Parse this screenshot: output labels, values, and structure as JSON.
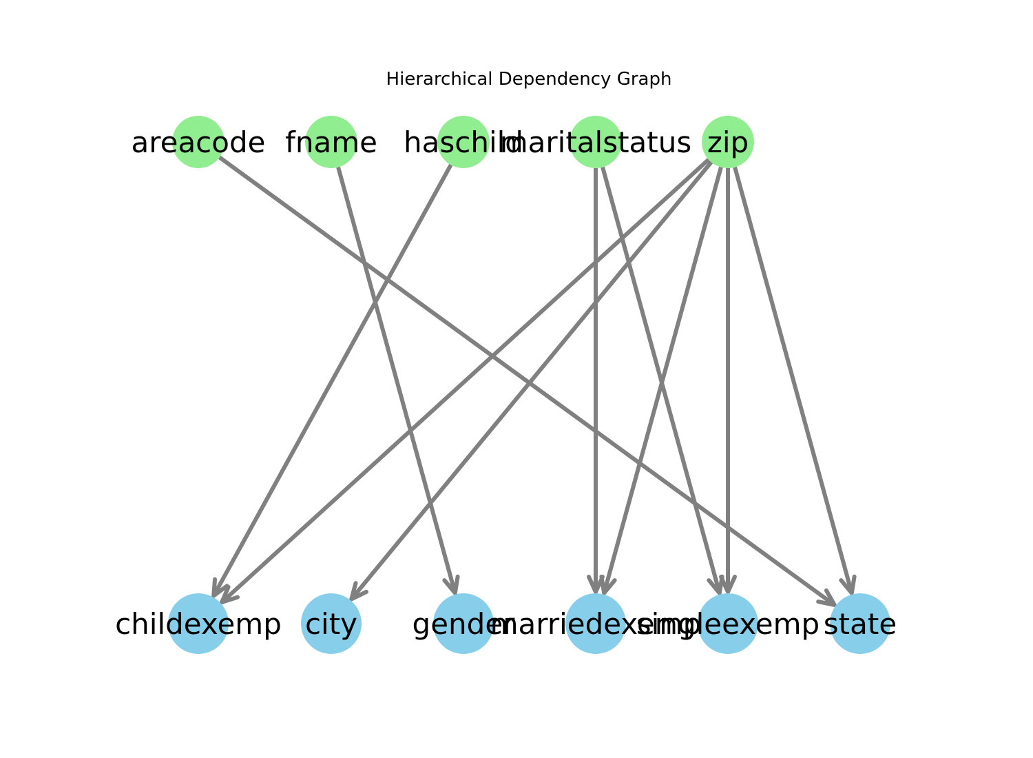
{
  "title": "Hierarchical Dependency Graph",
  "colors": {
    "source_node": "#90ee90",
    "target_node": "#87ceeb",
    "edge": "#808080",
    "label": "#000000",
    "background": "#ffffff"
  },
  "nodes": {
    "sources": [
      {
        "id": "areacode",
        "label": "areacode"
      },
      {
        "id": "fname",
        "label": "fname"
      },
      {
        "id": "haschild",
        "label": "haschild"
      },
      {
        "id": "maritalstatus",
        "label": "maritalstatus"
      },
      {
        "id": "zip",
        "label": "zip"
      }
    ],
    "targets": [
      {
        "id": "childexemp",
        "label": "childexemp"
      },
      {
        "id": "city",
        "label": "city"
      },
      {
        "id": "gender",
        "label": "gender"
      },
      {
        "id": "marriedexemp",
        "label": "marriedexemp"
      },
      {
        "id": "singleexemp",
        "label": "singleexemp"
      },
      {
        "id": "state",
        "label": "state"
      }
    ]
  },
  "edges": [
    {
      "from": "areacode",
      "to": "state"
    },
    {
      "from": "fname",
      "to": "gender"
    },
    {
      "from": "haschild",
      "to": "childexemp"
    },
    {
      "from": "maritalstatus",
      "to": "marriedexemp"
    },
    {
      "from": "maritalstatus",
      "to": "singleexemp"
    },
    {
      "from": "zip",
      "to": "childexemp"
    },
    {
      "from": "zip",
      "to": "city"
    },
    {
      "from": "zip",
      "to": "marriedexemp"
    },
    {
      "from": "zip",
      "to": "singleexemp"
    },
    {
      "from": "zip",
      "to": "state"
    }
  ]
}
